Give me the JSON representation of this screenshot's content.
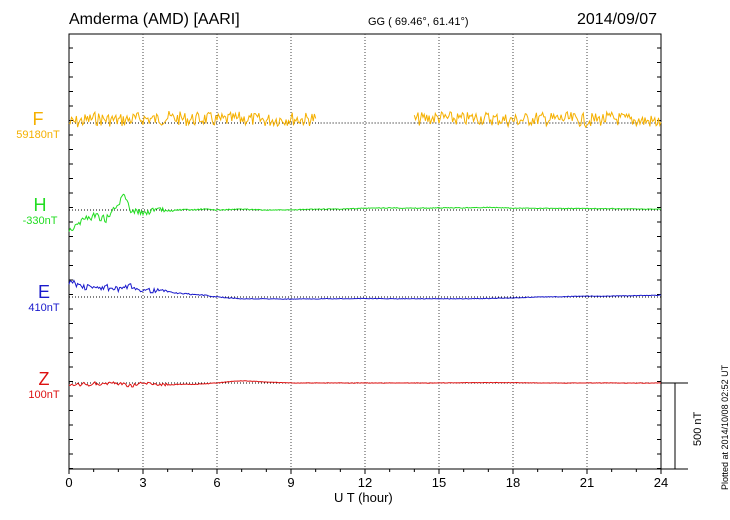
{
  "header": {
    "title": "Amderma (AMD)  [AARI]",
    "coords": "GG ( 69.46°,  61.41°)",
    "date": "2014/09/07",
    "plotted": "Plotted at 2014/10/08 02:52 UT",
    "scale_label": "500 nT"
  },
  "chart_data": {
    "type": "line",
    "xlabel": "U T (hour)",
    "xlim": [
      0,
      24
    ],
    "xticks": [
      0,
      3,
      6,
      9,
      12,
      15,
      18,
      21,
      24
    ],
    "grid": "dotted vertical lines every 3 hours",
    "scale_bar_nT": 500,
    "series": [
      {
        "name": "F",
        "baseline_label": "59180nT",
        "baseline_nT": 59180,
        "color": "#f5b000",
        "gaps": [
          [
            10.2,
            14.0
          ]
        ],
        "x": [
          0,
          0.5,
          1,
          1.5,
          2,
          2.5,
          3,
          3.5,
          4,
          4.5,
          5,
          5.5,
          6,
          6.5,
          7,
          7.5,
          8,
          8.5,
          9,
          9.5,
          10,
          14,
          14.5,
          15,
          15.5,
          16,
          16.5,
          17,
          17.5,
          18,
          18.5,
          19,
          19.5,
          20,
          20.5,
          21,
          21.5,
          22,
          22.5,
          23,
          23.5,
          24
        ],
        "values": [
          59180,
          59190,
          59205,
          59200,
          59195,
          59200,
          59205,
          59200,
          59210,
          59205,
          59200,
          59205,
          59195,
          59200,
          59205,
          59200,
          59195,
          59200,
          59205,
          59200,
          59205,
          59200,
          59205,
          59210,
          59205,
          59200,
          59210,
          59205,
          59200,
          59195,
          59200,
          59205,
          59200,
          59205,
          59200,
          59195,
          59200,
          59205,
          59200,
          59195,
          59190,
          59185
        ]
      },
      {
        "name": "H",
        "baseline_label": "-330nT",
        "baseline_nT": -330,
        "color": "#22dd22",
        "x": [
          0,
          0.5,
          1,
          1.5,
          2,
          2.25,
          2.5,
          3,
          3.5,
          4,
          4.5,
          5,
          5.5,
          6,
          7,
          8,
          9,
          10,
          11,
          12,
          13,
          14,
          15,
          16,
          17,
          18,
          19,
          20,
          21,
          22,
          23,
          24
        ],
        "values": [
          -440,
          -390,
          -360,
          -380,
          -300,
          -240,
          -330,
          -345,
          -330,
          -335,
          -330,
          -330,
          -325,
          -330,
          -325,
          -330,
          -330,
          -325,
          -325,
          -320,
          -318,
          -320,
          -318,
          -318,
          -315,
          -320,
          -320,
          -322,
          -322,
          -322,
          -325,
          -325
        ]
      },
      {
        "name": "E",
        "baseline_label": "410nT",
        "baseline_nT": 410,
        "color": "#1a1acc",
        "x": [
          0,
          0.5,
          1,
          1.5,
          2,
          2.5,
          3,
          3.5,
          4,
          4.5,
          5,
          5.5,
          6,
          7,
          8,
          9,
          10,
          11,
          12,
          13,
          14,
          15,
          16,
          17,
          18,
          19,
          20,
          21,
          22,
          23,
          24
        ],
        "values": [
          500,
          470,
          460,
          465,
          450,
          470,
          450,
          445,
          440,
          430,
          425,
          420,
          410,
          400,
          400,
          398,
          400,
          400,
          402,
          400,
          400,
          400,
          400,
          402,
          405,
          410,
          412,
          415,
          415,
          418,
          420
        ]
      },
      {
        "name": "Z",
        "baseline_label": "100nT",
        "baseline_nT": 100,
        "color": "#dd1111",
        "x": [
          0,
          0.5,
          1,
          1.5,
          2,
          2.5,
          3,
          3.5,
          4,
          4.5,
          5,
          5.5,
          6,
          6.5,
          7,
          7.5,
          8,
          9,
          10,
          11,
          12,
          13,
          14,
          15,
          16,
          17,
          18,
          19,
          20,
          21,
          22,
          23,
          24
        ],
        "values": [
          80,
          90,
          95,
          100,
          100,
          85,
          100,
          95,
          90,
          92,
          92,
          95,
          100,
          108,
          112,
          110,
          105,
          100,
          100,
          100,
          100,
          100,
          100,
          100,
          102,
          102,
          102,
          100,
          100,
          100,
          100,
          100,
          100
        ]
      }
    ]
  }
}
